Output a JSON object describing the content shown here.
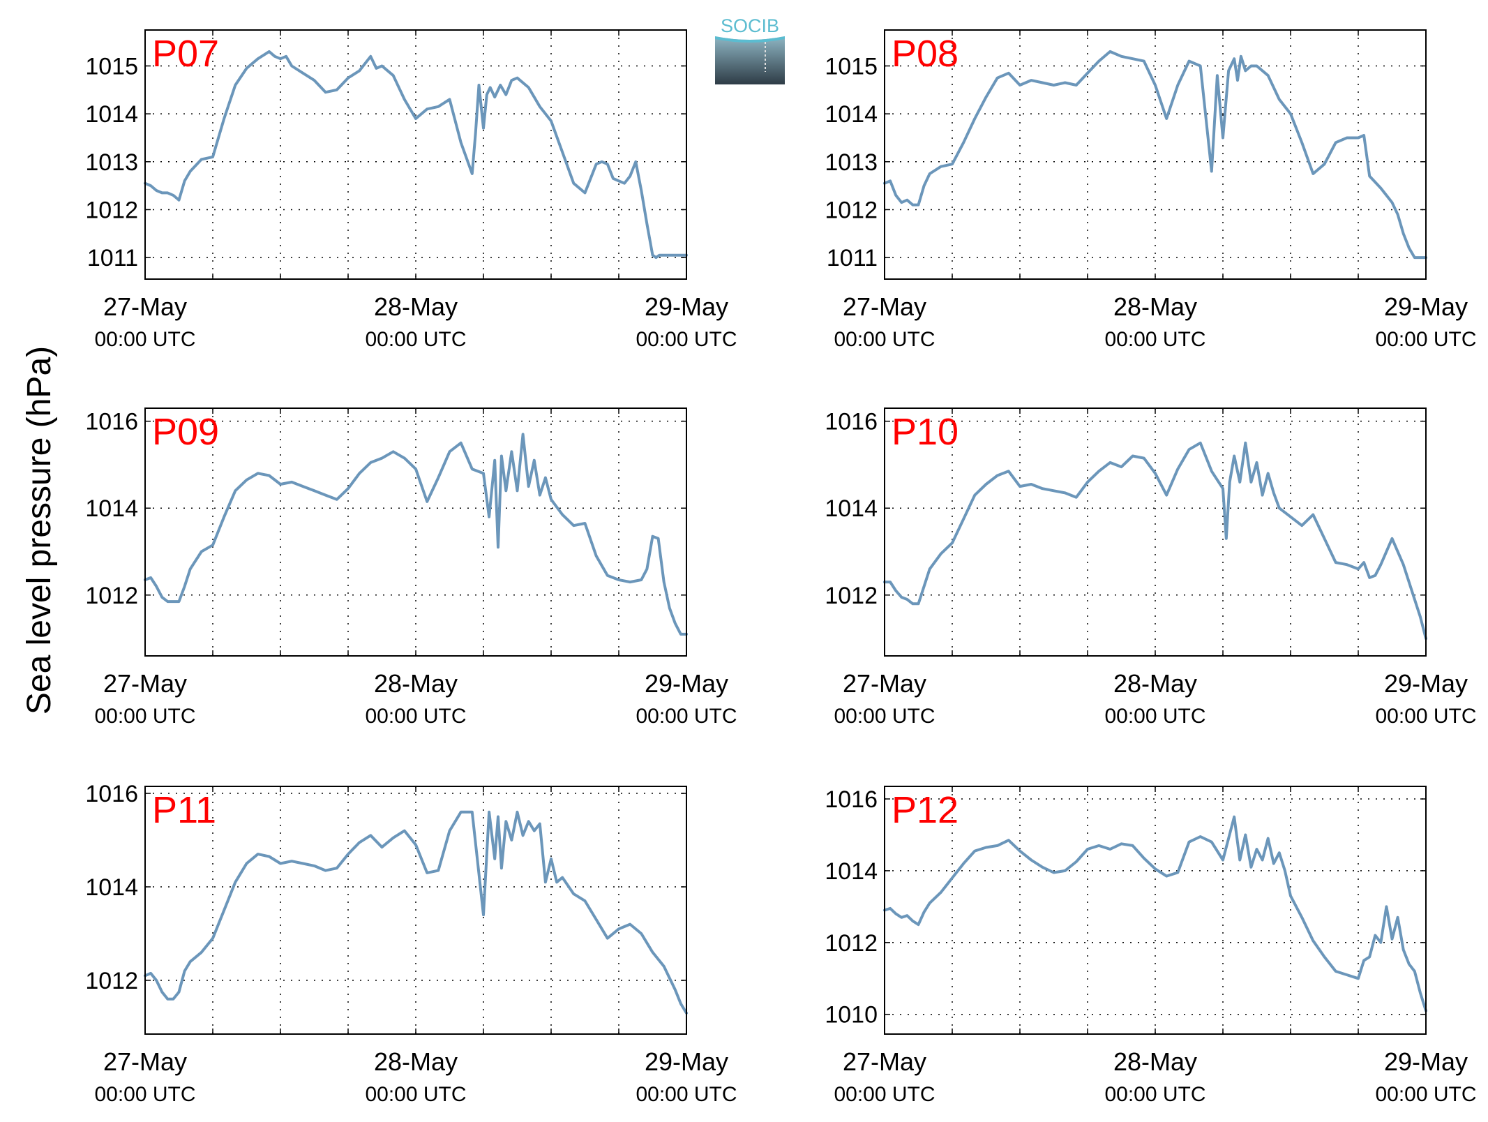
{
  "figure": {
    "ylabel": "Sea level pressure (hPa)",
    "logo_text": "SOCIB",
    "colors": {
      "line": "#6b96ba",
      "panel_label": "#ff0000",
      "axis": "#000000",
      "grid": "#000000",
      "logo_top": "#5bbcd0",
      "logo_bottom": "#2e3c46"
    }
  },
  "chart_data": [
    {
      "type": "line",
      "title": "P07",
      "x_unit": "hours since 27-May 00:00 UTC",
      "xlim": [
        0,
        48
      ],
      "ylim": [
        1010.55,
        1015.75
      ],
      "yticks": [
        1011,
        1012,
        1013,
        1014,
        1015
      ],
      "xtick_labels": [
        {
          "x": 0,
          "date": "27-May",
          "time": "00:00 UTC"
        },
        {
          "x": 24,
          "date": "28-May",
          "time": "00:00 UTC"
        },
        {
          "x": 48,
          "date": "29-May",
          "time": "00:00 UTC"
        }
      ],
      "grid": true,
      "x": [
        0,
        0.5,
        1,
        1.5,
        2,
        2.5,
        3,
        3.5,
        4,
        5,
        6,
        7,
        8,
        9,
        10,
        11,
        11.5,
        12,
        12.5,
        13,
        14,
        15,
        16,
        17,
        18,
        19,
        20,
        20.5,
        21,
        22,
        23,
        24,
        25,
        26,
        27,
        28,
        29,
        29.3,
        29.6,
        30,
        30.3,
        30.6,
        31,
        31.5,
        32,
        32.5,
        33,
        34,
        35,
        36,
        37,
        38,
        39,
        40,
        40.5,
        41,
        41.5,
        42,
        42.5,
        43,
        43.5,
        44,
        44.5,
        45,
        45.3,
        45.6,
        46,
        46.5,
        47,
        47.5,
        48
      ],
      "y": [
        1012.55,
        1012.5,
        1012.4,
        1012.35,
        1012.35,
        1012.3,
        1012.2,
        1012.6,
        1012.8,
        1013.05,
        1013.1,
        1013.9,
        1014.6,
        1014.95,
        1015.15,
        1015.3,
        1015.2,
        1015.15,
        1015.2,
        1015,
        1014.85,
        1014.7,
        1014.45,
        1014.5,
        1014.75,
        1014.9,
        1015.2,
        1014.95,
        1015,
        1014.8,
        1014.3,
        1013.9,
        1014.1,
        1014.15,
        1014.3,
        1013.4,
        1012.75,
        1013.6,
        1014.6,
        1013.7,
        1014.4,
        1014.55,
        1014.35,
        1014.6,
        1014.4,
        1014.7,
        1014.75,
        1014.55,
        1014.15,
        1013.85,
        1013.2,
        1012.55,
        1012.35,
        1012.95,
        1013,
        1012.95,
        1012.65,
        1012.6,
        1012.55,
        1012.7,
        1013,
        1012.4,
        1011.7,
        1011.05,
        1011.0,
        1011.05,
        1011.05,
        1011.05,
        1011.05,
        1011.05,
        1011.05
      ]
    },
    {
      "type": "line",
      "title": "P08",
      "x_unit": "hours since 27-May 00:00 UTC",
      "xlim": [
        0,
        48
      ],
      "ylim": [
        1010.55,
        1015.75
      ],
      "yticks": [
        1011,
        1012,
        1013,
        1014,
        1015
      ],
      "xtick_labels": [
        {
          "x": 0,
          "date": "27-May",
          "time": "00:00 UTC"
        },
        {
          "x": 24,
          "date": "28-May",
          "time": "00:00 UTC"
        },
        {
          "x": 48,
          "date": "29-May",
          "time": "00:00 UTC"
        }
      ],
      "grid": true,
      "x": [
        0,
        0.5,
        1,
        1.5,
        2,
        2.5,
        3,
        3.5,
        4,
        5,
        6,
        7,
        8,
        9,
        10,
        11,
        12,
        13,
        14,
        15,
        16,
        17,
        18,
        19,
        20,
        21,
        22,
        23,
        24,
        25,
        26,
        27,
        28,
        29,
        29.5,
        30,
        30.5,
        31,
        31.3,
        31.6,
        32,
        32.5,
        33,
        34,
        35,
        36,
        37,
        38,
        39,
        40,
        41,
        42,
        42.5,
        43,
        44,
        44.5,
        45,
        45.5,
        46,
        46.5,
        47,
        47.5,
        48
      ],
      "y": [
        1012.55,
        1012.6,
        1012.3,
        1012.15,
        1012.2,
        1012.1,
        1012.1,
        1012.5,
        1012.75,
        1012.9,
        1012.95,
        1013.4,
        1013.9,
        1014.35,
        1014.75,
        1014.85,
        1014.6,
        1014.7,
        1014.65,
        1014.6,
        1014.65,
        1014.6,
        1014.85,
        1015.1,
        1015.3,
        1015.2,
        1015.15,
        1015.1,
        1014.6,
        1013.9,
        1014.6,
        1015.1,
        1015,
        1012.8,
        1014.8,
        1013.5,
        1014.9,
        1015.15,
        1014.7,
        1015.2,
        1014.9,
        1015,
        1015,
        1014.8,
        1014.3,
        1014,
        1013.4,
        1012.75,
        1012.95,
        1013.4,
        1013.5,
        1013.5,
        1013.55,
        1012.7,
        1012.45,
        1012.3,
        1012.15,
        1011.9,
        1011.5,
        1011.2,
        1011.0,
        1011.0,
        1011.0
      ]
    },
    {
      "type": "line",
      "title": "P09",
      "x_unit": "hours since 27-May 00:00 UTC",
      "xlim": [
        0,
        48
      ],
      "ylim": [
        1010.6,
        1016.3
      ],
      "yticks": [
        1012,
        1014,
        1016
      ],
      "xtick_labels": [
        {
          "x": 0,
          "date": "27-May",
          "time": "00:00 UTC"
        },
        {
          "x": 24,
          "date": "28-May",
          "time": "00:00 UTC"
        },
        {
          "x": 48,
          "date": "29-May",
          "time": "00:00 UTC"
        }
      ],
      "grid": true,
      "x": [
        0,
        0.5,
        1,
        1.5,
        2,
        2.5,
        3,
        3.5,
        4,
        5,
        6,
        7,
        8,
        9,
        10,
        11,
        12,
        13,
        14,
        15,
        16,
        17,
        18,
        19,
        20,
        21,
        22,
        23,
        24,
        25,
        26,
        27,
        28,
        29,
        30,
        30.5,
        31,
        31.3,
        31.6,
        32,
        32.5,
        33,
        33.5,
        34,
        34.5,
        35,
        35.5,
        36,
        37,
        38,
        39,
        40,
        41,
        42,
        43,
        44,
        44.5,
        45,
        45.5,
        46,
        46.5,
        47,
        47.5,
        48
      ],
      "y": [
        1012.35,
        1012.4,
        1012.2,
        1011.95,
        1011.85,
        1011.85,
        1011.85,
        1012.2,
        1012.6,
        1013.0,
        1013.15,
        1013.8,
        1014.4,
        1014.65,
        1014.8,
        1014.75,
        1014.55,
        1014.6,
        1014.5,
        1014.4,
        1014.3,
        1014.2,
        1014.45,
        1014.8,
        1015.05,
        1015.15,
        1015.3,
        1015.15,
        1014.9,
        1014.15,
        1014.7,
        1015.3,
        1015.5,
        1014.9,
        1014.8,
        1013.8,
        1015.1,
        1013.1,
        1015.2,
        1014.4,
        1015.3,
        1014.4,
        1015.7,
        1014.5,
        1015.1,
        1014.3,
        1014.7,
        1014.2,
        1013.85,
        1013.6,
        1013.65,
        1012.9,
        1012.45,
        1012.35,
        1012.3,
        1012.35,
        1012.6,
        1013.35,
        1013.3,
        1012.3,
        1011.7,
        1011.35,
        1011.1,
        1011.1
      ]
    },
    {
      "type": "line",
      "title": "P10",
      "x_unit": "hours since 27-May 00:00 UTC",
      "xlim": [
        0,
        48
      ],
      "ylim": [
        1010.6,
        1016.3
      ],
      "yticks": [
        1012,
        1014,
        1016
      ],
      "xtick_labels": [
        {
          "x": 0,
          "date": "27-May",
          "time": "00:00 UTC"
        },
        {
          "x": 24,
          "date": "28-May",
          "time": "00:00 UTC"
        },
        {
          "x": 48,
          "date": "29-May",
          "time": "00:00 UTC"
        }
      ],
      "grid": true,
      "x": [
        0,
        0.5,
        1,
        1.5,
        2,
        2.5,
        3,
        3.5,
        4,
        5,
        6,
        7,
        8,
        9,
        10,
        11,
        12,
        13,
        14,
        15,
        16,
        17,
        18,
        19,
        20,
        21,
        22,
        23,
        24,
        25,
        26,
        27,
        28,
        29,
        30,
        30.3,
        30.6,
        31,
        31.5,
        32,
        32.5,
        33,
        33.5,
        34,
        34.5,
        35,
        36,
        37,
        38,
        39,
        40,
        41,
        42,
        42.5,
        43,
        43.5,
        44,
        45,
        46,
        47,
        47.5,
        48
      ],
      "y": [
        1012.3,
        1012.3,
        1012.1,
        1011.95,
        1011.9,
        1011.8,
        1011.8,
        1012.2,
        1012.6,
        1012.95,
        1013.2,
        1013.75,
        1014.3,
        1014.55,
        1014.75,
        1014.85,
        1014.5,
        1014.55,
        1014.45,
        1014.4,
        1014.35,
        1014.25,
        1014.6,
        1014.85,
        1015.05,
        1014.95,
        1015.2,
        1015.15,
        1014.8,
        1014.3,
        1014.9,
        1015.35,
        1015.5,
        1014.85,
        1014.45,
        1013.3,
        1014.6,
        1015.2,
        1014.6,
        1015.5,
        1014.6,
        1015.05,
        1014.3,
        1014.8,
        1014.35,
        1014,
        1013.8,
        1013.6,
        1013.85,
        1013.3,
        1012.75,
        1012.7,
        1012.6,
        1012.75,
        1012.4,
        1012.45,
        1012.7,
        1013.3,
        1012.7,
        1011.9,
        1011.5,
        1011.0
      ]
    },
    {
      "type": "line",
      "title": "P11",
      "x_unit": "hours since 27-May 00:00 UTC",
      "xlim": [
        0,
        48
      ],
      "ylim": [
        1010.85,
        1016.15
      ],
      "yticks": [
        1012,
        1014,
        1016
      ],
      "xtick_labels": [
        {
          "x": 0,
          "date": "27-May",
          "time": "00:00 UTC"
        },
        {
          "x": 24,
          "date": "28-May",
          "time": "00:00 UTC"
        },
        {
          "x": 48,
          "date": "29-May",
          "time": "00:00 UTC"
        }
      ],
      "grid": true,
      "x": [
        0,
        0.5,
        1,
        1.5,
        2,
        2.5,
        3,
        3.5,
        4,
        5,
        6,
        7,
        8,
        9,
        10,
        11,
        12,
        13,
        14,
        15,
        16,
        17,
        18,
        19,
        20,
        21,
        22,
        23,
        24,
        25,
        26,
        27,
        28,
        29,
        30,
        30.5,
        31,
        31.3,
        31.6,
        32,
        32.5,
        33,
        33.5,
        34,
        34.5,
        35,
        35.5,
        36,
        36.5,
        37,
        38,
        39,
        40,
        41,
        42,
        43,
        44,
        45,
        46,
        47,
        47.5,
        48
      ],
      "y": [
        1012.1,
        1012.15,
        1012.0,
        1011.75,
        1011.6,
        1011.6,
        1011.75,
        1012.2,
        1012.4,
        1012.6,
        1012.9,
        1013.5,
        1014.1,
        1014.5,
        1014.7,
        1014.65,
        1014.5,
        1014.55,
        1014.5,
        1014.45,
        1014.35,
        1014.4,
        1014.7,
        1014.95,
        1015.1,
        1014.85,
        1015.05,
        1015.2,
        1014.9,
        1014.3,
        1014.35,
        1015.2,
        1015.6,
        1015.6,
        1013.4,
        1015.6,
        1014.6,
        1015.5,
        1014.4,
        1015.4,
        1015.0,
        1015.6,
        1015.1,
        1015.4,
        1015.2,
        1015.35,
        1014.1,
        1014.6,
        1014.1,
        1014.2,
        1013.85,
        1013.7,
        1013.3,
        1012.9,
        1013.1,
        1013.2,
        1013.0,
        1012.6,
        1012.3,
        1011.8,
        1011.5,
        1011.3
      ]
    },
    {
      "type": "line",
      "title": "P12",
      "x_unit": "hours since 27-May 00:00 UTC",
      "xlim": [
        0,
        48
      ],
      "ylim": [
        1009.45,
        1016.35
      ],
      "yticks": [
        1010,
        1012,
        1014,
        1016
      ],
      "xtick_labels": [
        {
          "x": 0,
          "date": "27-May",
          "time": "00:00 UTC"
        },
        {
          "x": 24,
          "date": "28-May",
          "time": "00:00 UTC"
        },
        {
          "x": 48,
          "date": "29-May",
          "time": "00:00 UTC"
        }
      ],
      "grid": true,
      "x": [
        0,
        0.5,
        1,
        1.5,
        2,
        2.5,
        3,
        3.5,
        4,
        5,
        6,
        7,
        8,
        9,
        10,
        11,
        12,
        13,
        14,
        15,
        16,
        17,
        18,
        19,
        20,
        21,
        22,
        23,
        24,
        25,
        26,
        27,
        28,
        29,
        30,
        31,
        31.5,
        32,
        32.5,
        33,
        33.5,
        34,
        34.5,
        35,
        35.5,
        36,
        37,
        38,
        39,
        40,
        41,
        42,
        42.5,
        43,
        43.5,
        44,
        44.5,
        45,
        45.5,
        46,
        46.5,
        47,
        47.5,
        48
      ],
      "y": [
        1012.9,
        1012.95,
        1012.8,
        1012.7,
        1012.75,
        1012.6,
        1012.5,
        1012.85,
        1013.1,
        1013.4,
        1013.8,
        1014.2,
        1014.55,
        1014.65,
        1014.7,
        1014.85,
        1014.55,
        1014.3,
        1014.1,
        1013.95,
        1014,
        1014.25,
        1014.6,
        1014.7,
        1014.6,
        1014.75,
        1014.7,
        1014.35,
        1014.05,
        1013.85,
        1013.95,
        1014.8,
        1014.95,
        1014.8,
        1014.3,
        1015.5,
        1014.3,
        1015.0,
        1014.1,
        1014.6,
        1014.3,
        1014.9,
        1014.2,
        1014.5,
        1014.0,
        1013.3,
        1012.7,
        1012.05,
        1011.6,
        1011.2,
        1011.1,
        1011.0,
        1011.5,
        1011.6,
        1012.2,
        1012.0,
        1013.0,
        1012.1,
        1012.7,
        1011.8,
        1011.4,
        1011.2,
        1010.6,
        1010.1
      ]
    }
  ]
}
